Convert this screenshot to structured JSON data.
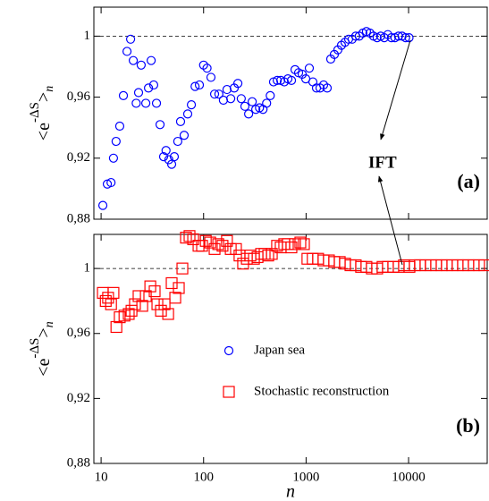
{
  "chart_data": [
    {
      "type": "scatter",
      "panel_label": "(a)",
      "annotation": "IFT",
      "ylabel": {
        "base": "<e",
        "sup": "-ΔS",
        "close": ">",
        "sub": "n"
      },
      "xscale": "log",
      "xlim": [
        8.5,
        58500
      ],
      "ylim": [
        0.88,
        1.019
      ],
      "yticks": [
        {
          "value": 0.88,
          "label": "0,88"
        },
        {
          "value": 0.92,
          "label": "0,92"
        },
        {
          "value": 0.96,
          "label": "0,96"
        },
        1
      ],
      "hline": 1,
      "series": [
        {
          "name": "Japan sea",
          "color": "#0000ff",
          "marker": "circle",
          "x": [
            10.4,
            11.5,
            12.5,
            13.2,
            14,
            15.2,
            16.5,
            17.9,
            19.4,
            20.6,
            22,
            23.2,
            24.6,
            27.3,
            29,
            30.8,
            32.6,
            34.7,
            37.6,
            40.7,
            43,
            45.8,
            48.8,
            51.8,
            56,
            59.6,
            64.6,
            70,
            76,
            82.6,
            91,
            100,
            108,
            118,
            128,
            141,
            156,
            169,
            184,
            199,
            216,
            233,
            253,
            275,
            298,
            323,
            351,
            380,
            412,
            447,
            481,
            523,
            566,
            613,
            665,
            720,
            780,
            845,
            916,
            993,
            1075,
            1165,
            1263,
            1368,
            1482,
            1606,
            1740,
            1886,
            2043,
            2213,
            2398,
            2598,
            2815,
            3050,
            3300,
            3580,
            3880,
            4200,
            4550,
            4930,
            5340,
            5790,
            6270,
            6800,
            7360,
            7970,
            8640,
            9360,
            10100
          ],
          "values": [
            0.889,
            0.903,
            0.904,
            0.92,
            0.931,
            0.941,
            0.961,
            0.99,
            0.998,
            0.984,
            0.956,
            0.963,
            0.981,
            0.956,
            0.966,
            0.984,
            0.968,
            0.956,
            0.942,
            0.921,
            0.925,
            0.919,
            0.916,
            0.921,
            0.931,
            0.944,
            0.935,
            0.949,
            0.955,
            0.967,
            0.968,
            0.981,
            0.979,
            0.973,
            0.962,
            0.962,
            0.958,
            0.965,
            0.959,
            0.966,
            0.969,
            0.959,
            0.954,
            0.949,
            0.957,
            0.952,
            0.953,
            0.952,
            0.956,
            0.961,
            0.97,
            0.971,
            0.971,
            0.97,
            0.972,
            0.971,
            0.978,
            0.976,
            0.975,
            0.972,
            0.979,
            0.97,
            0.966,
            0.966,
            0.968,
            0.966,
            0.985,
            0.988,
            0.991,
            0.994,
            0.996,
            0.998,
            0.998,
            1.0,
            1.0,
            1.002,
            1.003,
            1.002,
            1.0,
            0.999,
            1.0,
            0.999,
            1.001,
            0.999,
            0.999,
            1.0,
            1.0,
            0.999,
            0.999
          ]
        }
      ]
    },
    {
      "type": "scatter",
      "panel_label": "(b)",
      "xlabel": "n",
      "ylabel": {
        "base": "<e",
        "sup": "-ΔS",
        "close": ">",
        "sub": "n"
      },
      "xscale": "log",
      "xlim": [
        8.5,
        58500
      ],
      "ylim": [
        0.88,
        1.021
      ],
      "xticks": [
        10,
        100,
        1000,
        10000
      ],
      "yticks": [
        {
          "value": 0.88,
          "label": "0,88"
        },
        {
          "value": 0.92,
          "label": "0,92"
        },
        {
          "value": 0.96,
          "label": "0,96"
        },
        1
      ],
      "hline": 1,
      "legend": "lower-center",
      "series": [
        {
          "name": "Stochastic reconstruction",
          "color": "#ff0000",
          "marker": "square",
          "x": [
            10.4,
            11.1,
            11.7,
            12.5,
            13.2,
            14.1,
            15.2,
            16.9,
            18.6,
            19.8,
            21.4,
            23.2,
            25.2,
            27.3,
            30.2,
            33.3,
            35.4,
            38.4,
            41.6,
            45.1,
            48.8,
            52.9,
            57.3,
            62.1,
            67.3,
            72.9,
            79.1,
            89.2,
            96.6,
            105,
            116,
            128,
            139,
            153,
            169,
            184,
            207,
            224,
            243,
            264,
            286,
            310,
            336,
            364,
            394,
            427,
            463,
            521,
            565,
            612,
            664,
            719,
            780,
            879,
            953,
            1030,
            1160,
            1310,
            1480,
            1670,
            1880,
            2130,
            2400,
            2710,
            3050,
            3440,
            3880,
            4380,
            4940,
            5570,
            6290,
            7100,
            8000,
            9020,
            10200,
            11500,
            12900,
            14600,
            16500,
            18600,
            21000,
            23600,
            26700,
            30100,
            34000,
            38300,
            43200,
            48700,
            55000
          ],
          "values": [
            0.985,
            0.98,
            0.982,
            0.978,
            0.985,
            0.964,
            0.97,
            0.971,
            0.972,
            0.974,
            0.978,
            0.983,
            0.977,
            0.983,
            0.989,
            0.986,
            0.978,
            0.974,
            0.978,
            0.972,
            0.991,
            0.982,
            0.988,
            1.0,
            1.019,
            1.02,
            1.018,
            1.014,
            1.014,
            1.017,
            1.016,
            1.012,
            1.015,
            1.014,
            1.017,
            1.012,
            1.012,
            1.008,
            1.003,
            1.006,
            1.008,
            1.006,
            1.007,
            1.009,
            1.009,
            1.008,
            1.009,
            1.014,
            1.013,
            1.015,
            1.015,
            1.013,
            1.015,
            1.016,
            1.015,
            1.006,
            1.006,
            1.006,
            1.005,
            1.005,
            1.004,
            1.004,
            1.003,
            1.002,
            1.002,
            1.001,
            1.001,
            1.0,
            1.0,
            1.001,
            1.001,
            1.001,
            1.001,
            1.002,
            1.001,
            1.002,
            1.002,
            1.002,
            1.002,
            1.002,
            1.002,
            1.002,
            1.002,
            1.002,
            1.002,
            1.002,
            1.002,
            1.002,
            1.002
          ]
        }
      ]
    }
  ]
}
